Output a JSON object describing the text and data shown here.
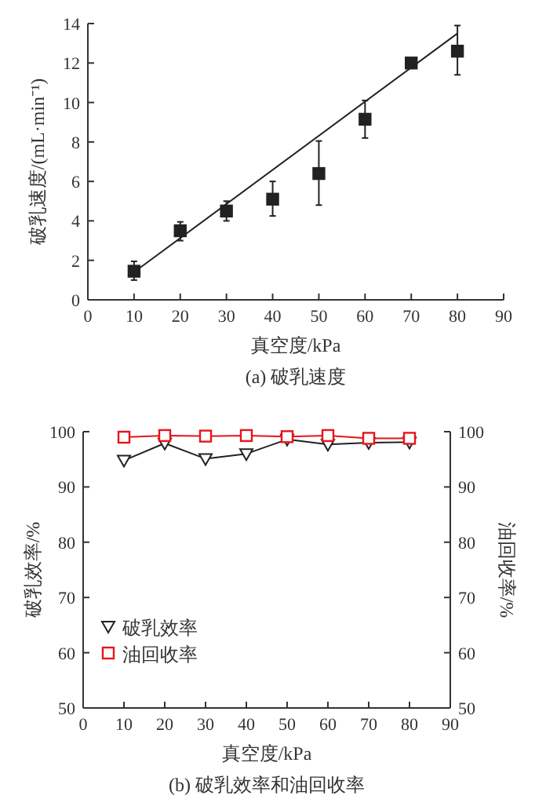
{
  "chart_data": [
    {
      "type": "scatter",
      "title": "(a) 破乳速度",
      "xlabel": "真空度/kPa",
      "ylabel": "破乳速度/(mL·min⁻¹)",
      "xlim": [
        0,
        90
      ],
      "xticks": [
        0,
        10,
        20,
        30,
        40,
        50,
        60,
        70,
        80,
        90
      ],
      "ylim": [
        0,
        14
      ],
      "yticks": [
        0,
        2,
        4,
        6,
        8,
        10,
        12,
        14
      ],
      "marker": "square",
      "grid": false,
      "legend": false,
      "series": [
        {
          "color": "#222222",
          "x": [
            10,
            20,
            30,
            40,
            50,
            60,
            70,
            80
          ],
          "values": [
            1.45,
            3.5,
            4.5,
            5.1,
            6.4,
            9.15,
            12.0,
            12.6
          ],
          "errors": [
            [
              1.0,
              1.95
            ],
            [
              3.0,
              3.95
            ],
            [
              4.0,
              5.0
            ],
            [
              4.25,
              6.0
            ],
            [
              4.8,
              8.05
            ],
            [
              8.2,
              10.1
            ],
            [
              11.85,
              12.2
            ],
            [
              11.4,
              13.9
            ]
          ]
        },
        {
          "type": "line",
          "color": "#222222",
          "x": [
            10,
            80
          ],
          "values": [
            1.4,
            13.5
          ],
          "marker": "none"
        }
      ]
    },
    {
      "type": "line",
      "title": "(b) 破乳效率和油回收率",
      "xlabel": "真空度/kPa",
      "ylabel": "破乳效率/%",
      "y2label": "油回收率/%",
      "xlim": [
        0,
        90
      ],
      "xticks": [
        0,
        10,
        20,
        30,
        40,
        50,
        60,
        70,
        80,
        90
      ],
      "ylim": [
        50,
        100
      ],
      "yticks": [
        50,
        60,
        70,
        80,
        90,
        100
      ],
      "y2lim": [
        50,
        100
      ],
      "y2ticks": [
        50,
        60,
        70,
        80,
        90,
        100
      ],
      "grid": false,
      "legend": "bottom left",
      "series": [
        {
          "name": "破乳效率",
          "marker": "triangle",
          "color": "#222222",
          "x": [
            10,
            20,
            30,
            40,
            50,
            60,
            70,
            80
          ],
          "values": [
            94.8,
            97.9,
            95.1,
            96.0,
            98.6,
            97.7,
            98.0,
            98.1
          ]
        },
        {
          "name": "油回收率",
          "marker": "square",
          "axis": "y2",
          "color": "#e8141b",
          "x": [
            10,
            20,
            30,
            40,
            50,
            60,
            70,
            80
          ],
          "values": [
            99.0,
            99.3,
            99.2,
            99.3,
            99.1,
            99.3,
            98.8,
            98.8
          ]
        }
      ]
    }
  ]
}
